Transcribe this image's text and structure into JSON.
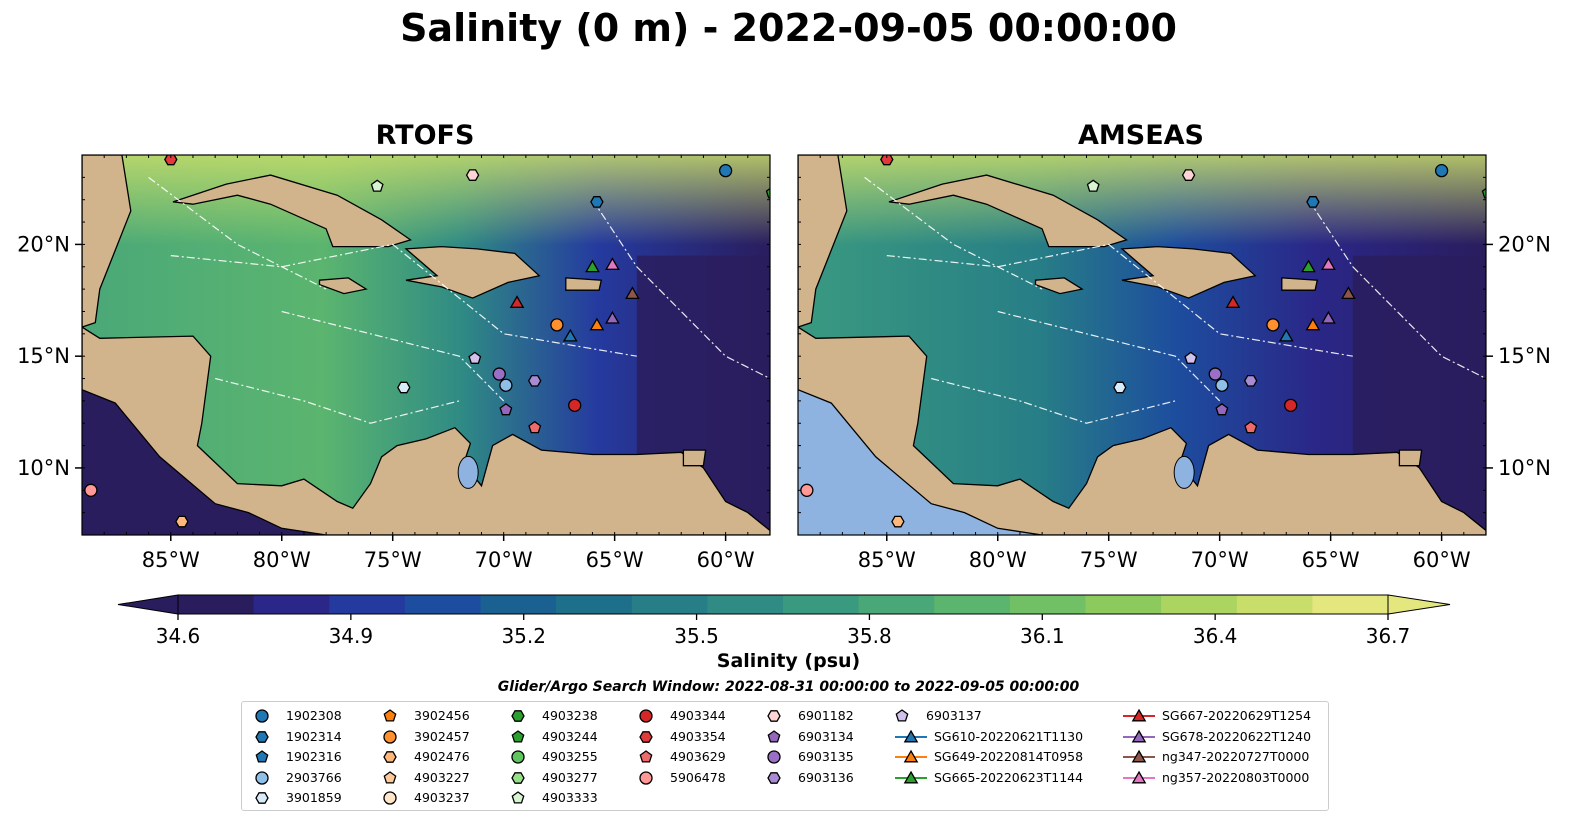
{
  "title": "Salinity (0 m) - 2022-09-05 00:00:00",
  "panels": [
    {
      "title": "RTOFS"
    },
    {
      "title": "AMSEAS"
    }
  ],
  "colorbar": {
    "label": "Salinity (psu)",
    "ticks": [
      "34.6",
      "34.9",
      "35.2",
      "35.5",
      "35.8",
      "36.1",
      "36.4",
      "36.7"
    ],
    "colors": [
      "#2a1d5e",
      "#2a2788",
      "#253a9f",
      "#1d4d9e",
      "#1a6091",
      "#1e6f8a",
      "#277e86",
      "#2f8b84",
      "#3a9a80",
      "#4aa878",
      "#5bb56f",
      "#72c065",
      "#8dca5e",
      "#abd460",
      "#c8dd6a",
      "#e3e77e"
    ]
  },
  "search_window": "Glider/Argo Search Window: 2022-08-31 00:00:00 to 2022-09-05 00:00:00",
  "chart_data": [
    {
      "type": "heatmap",
      "title": "RTOFS",
      "variable": "Salinity (psu)",
      "x_ticks": [
        "85°W",
        "80°W",
        "75°W",
        "70°W",
        "65°W",
        "60°W"
      ],
      "y_ticks": [
        "20°N",
        "15°N",
        "10°N"
      ],
      "x_range_lon": [
        -89,
        -58
      ],
      "y_range_lat": [
        7,
        24
      ],
      "color_range": [
        34.6,
        36.7
      ]
    },
    {
      "type": "heatmap",
      "title": "AMSEAS",
      "variable": "Salinity (psu)",
      "x_ticks": [
        "85°W",
        "80°W",
        "75°W",
        "70°W",
        "65°W",
        "60°W"
      ],
      "y_ticks": [
        "20°N",
        "15°N",
        "10°N"
      ],
      "x_range_lon": [
        -89,
        -58
      ],
      "y_range_lat": [
        7,
        24
      ],
      "color_range": [
        34.6,
        36.7
      ]
    }
  ],
  "legend": [
    {
      "label": "1902308",
      "marker": "circle",
      "color": "#1f77b4"
    },
    {
      "label": "1902314",
      "marker": "hexagon",
      "color": "#1f77b4"
    },
    {
      "label": "1902316",
      "marker": "pentagon",
      "color": "#1f77b4"
    },
    {
      "label": "2903766",
      "marker": "circle",
      "color": "#8fc1e8"
    },
    {
      "label": "3901859",
      "marker": "hexagon",
      "color": "#d9ecfa"
    },
    {
      "label": "3902456",
      "marker": "pentagon",
      "color": "#ff7f0e"
    },
    {
      "label": "3902457",
      "marker": "circle",
      "color": "#ff9030"
    },
    {
      "label": "4902476",
      "marker": "hexagon",
      "color": "#ffb87a"
    },
    {
      "label": "4903227",
      "marker": "pentagon",
      "color": "#ffc99a"
    },
    {
      "label": "4903237",
      "marker": "circle",
      "color": "#ffe6c8"
    },
    {
      "label": "4903238",
      "marker": "hexagon",
      "color": "#2ca02c"
    },
    {
      "label": "4903244",
      "marker": "pentagon",
      "color": "#2ca02c"
    },
    {
      "label": "4903255",
      "marker": "circle",
      "color": "#5fc65f"
    },
    {
      "label": "4903277",
      "marker": "hexagon",
      "color": "#98df8a"
    },
    {
      "label": "4903333",
      "marker": "pentagon",
      "color": "#d6f5d0"
    },
    {
      "label": "4903344",
      "marker": "circle",
      "color": "#d62728"
    },
    {
      "label": "4903354",
      "marker": "hexagon",
      "color": "#e03a3a"
    },
    {
      "label": "4903629",
      "marker": "pentagon",
      "color": "#ee6b6b"
    },
    {
      "label": "5906478",
      "marker": "circle",
      "color": "#ff9896"
    },
    {
      "label": "6901182",
      "marker": "hexagon",
      "color": "#ffd4d4"
    },
    {
      "label": "6903134",
      "marker": "pentagon",
      "color": "#9467bd"
    },
    {
      "label": "6903135",
      "marker": "circle",
      "color": "#9a70c6"
    },
    {
      "label": "6903136",
      "marker": "hexagon",
      "color": "#a88bd1"
    },
    {
      "label": "6903137",
      "marker": "pentagon",
      "color": "#d2c1ec"
    },
    {
      "label": "SG610-20220621T1130",
      "marker": "triangle",
      "color": "#1f77b4"
    },
    {
      "label": "SG649-20220814T0958",
      "marker": "triangle",
      "color": "#ff7f0e"
    },
    {
      "label": "SG665-20220623T1144",
      "marker": "triangle",
      "color": "#2ca02c"
    },
    {
      "label": "SG667-20220629T1254",
      "marker": "triangle",
      "color": "#d62728"
    },
    {
      "label": "SG678-20220622T1240",
      "marker": "triangle",
      "color": "#9467bd"
    },
    {
      "label": "ng347-20220727T0000",
      "marker": "triangle",
      "color": "#8c564b"
    },
    {
      "label": "ng357-20220803T0000",
      "marker": "triangle",
      "color": "#e377c2"
    }
  ],
  "map_markers": [
    {
      "id": "1902308",
      "lon": -60.0,
      "lat": 23.3
    },
    {
      "id": "1902314",
      "lon": -65.8,
      "lat": 21.9
    },
    {
      "id": "3901859",
      "lon": -74.5,
      "lat": 13.6
    },
    {
      "id": "3902457",
      "lon": -67.6,
      "lat": 16.4
    },
    {
      "id": "4902476",
      "lon": -84.5,
      "lat": 7.6
    },
    {
      "id": "4903244",
      "lon": -57.9,
      "lat": 22.3
    },
    {
      "id": "4903333",
      "lon": -75.7,
      "lat": 22.6
    },
    {
      "id": "4903344",
      "lon": -66.8,
      "lat": 12.8
    },
    {
      "id": "4903354",
      "lon": -85.0,
      "lat": 23.8
    },
    {
      "id": "4903629",
      "lon": -68.6,
      "lat": 11.8
    },
    {
      "id": "5906478",
      "lon": -88.6,
      "lat": 9.0
    },
    {
      "id": "6901182",
      "lon": -71.4,
      "lat": 23.1
    },
    {
      "id": "6903134",
      "lon": -69.9,
      "lat": 12.6
    },
    {
      "id": "6903135",
      "lon": -70.2,
      "lat": 14.2
    },
    {
      "id": "6903136",
      "lon": -68.6,
      "lat": 13.9
    },
    {
      "id": "6903137",
      "lon": -71.3,
      "lat": 14.9
    },
    {
      "id": "2903766",
      "lon": -69.9,
      "lat": 13.7
    },
    {
      "id": "SG610-20220621T1130",
      "lon": -67.0,
      "lat": 15.9
    },
    {
      "id": "SG649-20220814T0958",
      "lon": -65.8,
      "lat": 16.4
    },
    {
      "id": "SG665-20220623T1144",
      "lon": -66.0,
      "lat": 19.0
    },
    {
      "id": "SG667-20220629T1254",
      "lon": -69.4,
      "lat": 17.4
    },
    {
      "id": "SG678-20220622T1240",
      "lon": -65.1,
      "lat": 16.7
    },
    {
      "id": "ng347-20220727T0000",
      "lon": -64.2,
      "lat": 17.8
    },
    {
      "id": "ng357-20220803T0000",
      "lon": -65.1,
      "lat": 19.1
    }
  ]
}
